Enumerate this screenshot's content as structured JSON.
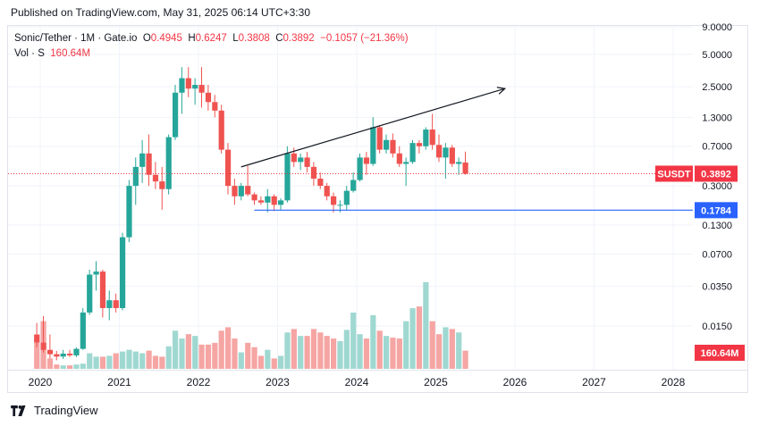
{
  "header": {
    "published": "Published on TradingView.com, May 31, 2025 06:14 UTC+3:30"
  },
  "legend": {
    "symbol": "Sonic/Tether · 1M · Gate.io",
    "open_label": "O",
    "open": "0.4945",
    "high_label": "H",
    "high": "0.6247",
    "low_label": "L",
    "low": "0.3808",
    "close_label": "C",
    "close": "0.3892",
    "change": "−0.1057 (−21.36%)",
    "vol_label": "Vol · S",
    "vol": "160.64M"
  },
  "footer": {
    "brand": "TradingView"
  },
  "colors": {
    "up": "#26a69a",
    "down": "#ef5350",
    "vol_up": "#9fd8d1",
    "vol_down": "#f5a5a3",
    "price_tag": "#f23645",
    "support_line": "#2962ff",
    "trend_line": "#131722",
    "grid": "#f0f3fa"
  },
  "chart_data": {
    "type": "candlestick",
    "y_scale": "log",
    "y_ticks": [
      "9.0000",
      "5.0000",
      "2.5000",
      "1.3000",
      "0.7000",
      "0.3000",
      "0.1300",
      "0.0700",
      "0.0350",
      "0.0150"
    ],
    "y_tick_values": [
      9.0,
      5.0,
      2.5,
      1.3,
      0.7,
      0.3,
      0.13,
      0.07,
      0.035,
      0.015
    ],
    "x_ticks": [
      "2020",
      "2021",
      "2022",
      "2023",
      "2024",
      "2025",
      "2026",
      "2027",
      "2028"
    ],
    "current_price_label": "SUSDT",
    "current_price": "0.3892",
    "support_label": "0.1784",
    "support_value": 0.1784,
    "volume_label": "160.64M",
    "trend_line": {
      "from": {
        "date": "2022-07",
        "price": 0.45
      },
      "to": {
        "date": "2025-11",
        "price": 2.4
      }
    },
    "support_line": {
      "from": {
        "date": "2022-09",
        "price": 0.1784
      }
    },
    "candles": [
      {
        "d": "2019-12",
        "o": 0.0125,
        "h": 0.016,
        "l": 0.0095,
        "c": 0.0105,
        "v": 0.3
      },
      {
        "d": "2020-01",
        "o": 0.0105,
        "h": 0.0185,
        "l": 0.0085,
        "c": 0.009,
        "v": 0.55
      },
      {
        "d": "2020-02",
        "o": 0.009,
        "h": 0.0125,
        "l": 0.0075,
        "c": 0.0082,
        "v": 0.12
      },
      {
        "d": "2020-03",
        "o": 0.0082,
        "h": 0.0088,
        "l": 0.0072,
        "c": 0.0078,
        "v": 0.05
      },
      {
        "d": "2020-04",
        "o": 0.0078,
        "h": 0.009,
        "l": 0.0074,
        "c": 0.0083,
        "v": 0.04
      },
      {
        "d": "2020-05",
        "o": 0.0083,
        "h": 0.009,
        "l": 0.0077,
        "c": 0.008,
        "v": 0.04
      },
      {
        "d": "2020-06",
        "o": 0.008,
        "h": 0.0095,
        "l": 0.0077,
        "c": 0.0092,
        "v": 0.05
      },
      {
        "d": "2020-07",
        "o": 0.0092,
        "h": 0.022,
        "l": 0.009,
        "c": 0.02,
        "v": 0.06
      },
      {
        "d": "2020-08",
        "o": 0.02,
        "h": 0.05,
        "l": 0.019,
        "c": 0.045,
        "v": 0.18
      },
      {
        "d": "2020-09",
        "o": 0.045,
        "h": 0.06,
        "l": 0.032,
        "c": 0.048,
        "v": 0.14
      },
      {
        "d": "2020-10",
        "o": 0.048,
        "h": 0.05,
        "l": 0.018,
        "c": 0.022,
        "v": 0.14
      },
      {
        "d": "2020-11",
        "o": 0.022,
        "h": 0.032,
        "l": 0.017,
        "c": 0.026,
        "v": 0.15
      },
      {
        "d": "2020-12",
        "o": 0.026,
        "h": 0.03,
        "l": 0.02,
        "c": 0.022,
        "v": 0.18
      },
      {
        "d": "2021-01",
        "o": 0.022,
        "h": 0.11,
        "l": 0.021,
        "c": 0.1,
        "v": 0.2
      },
      {
        "d": "2021-02",
        "o": 0.1,
        "h": 0.34,
        "l": 0.09,
        "c": 0.3,
        "v": 0.22
      },
      {
        "d": "2021-03",
        "o": 0.3,
        "h": 0.55,
        "l": 0.2,
        "c": 0.45,
        "v": 0.2
      },
      {
        "d": "2021-04",
        "o": 0.45,
        "h": 0.8,
        "l": 0.32,
        "c": 0.6,
        "v": 0.18
      },
      {
        "d": "2021-05",
        "o": 0.6,
        "h": 0.9,
        "l": 0.3,
        "c": 0.38,
        "v": 0.21
      },
      {
        "d": "2021-06",
        "o": 0.38,
        "h": 0.5,
        "l": 0.28,
        "c": 0.33,
        "v": 0.15
      },
      {
        "d": "2021-07",
        "o": 0.33,
        "h": 0.45,
        "l": 0.18,
        "c": 0.28,
        "v": 0.14
      },
      {
        "d": "2021-08",
        "o": 0.28,
        "h": 0.9,
        "l": 0.25,
        "c": 0.85,
        "v": 0.26
      },
      {
        "d": "2021-09",
        "o": 0.85,
        "h": 2.6,
        "l": 0.8,
        "c": 2.2,
        "v": 0.44
      },
      {
        "d": "2021-10",
        "o": 2.2,
        "h": 3.8,
        "l": 1.4,
        "c": 3.0,
        "v": 0.35
      },
      {
        "d": "2021-11",
        "o": 3.0,
        "h": 3.8,
        "l": 2.0,
        "c": 2.4,
        "v": 0.4
      },
      {
        "d": "2021-12",
        "o": 2.4,
        "h": 3.0,
        "l": 1.7,
        "c": 2.6,
        "v": 0.38
      },
      {
        "d": "2022-01",
        "o": 2.6,
        "h": 3.8,
        "l": 1.6,
        "c": 2.2,
        "v": 0.28
      },
      {
        "d": "2022-02",
        "o": 2.2,
        "h": 2.6,
        "l": 1.5,
        "c": 1.8,
        "v": 0.28
      },
      {
        "d": "2022-03",
        "o": 1.8,
        "h": 2.1,
        "l": 1.3,
        "c": 1.5,
        "v": 0.3
      },
      {
        "d": "2022-04",
        "o": 1.5,
        "h": 1.7,
        "l": 0.6,
        "c": 0.65,
        "v": 0.44
      },
      {
        "d": "2022-05",
        "o": 0.65,
        "h": 0.75,
        "l": 0.25,
        "c": 0.3,
        "v": 0.48
      },
      {
        "d": "2022-06",
        "o": 0.3,
        "h": 0.35,
        "l": 0.2,
        "c": 0.24,
        "v": 0.35
      },
      {
        "d": "2022-07",
        "o": 0.24,
        "h": 0.32,
        "l": 0.22,
        "c": 0.3,
        "v": 0.19
      },
      {
        "d": "2022-08",
        "o": 0.3,
        "h": 0.46,
        "l": 0.24,
        "c": 0.25,
        "v": 0.3
      },
      {
        "d": "2022-09",
        "o": 0.25,
        "h": 0.26,
        "l": 0.2,
        "c": 0.22,
        "v": 0.25
      },
      {
        "d": "2022-10",
        "o": 0.22,
        "h": 0.24,
        "l": 0.2,
        "c": 0.21,
        "v": 0.15
      },
      {
        "d": "2022-11",
        "o": 0.21,
        "h": 0.28,
        "l": 0.17,
        "c": 0.24,
        "v": 0.22
      },
      {
        "d": "2022-12",
        "o": 0.24,
        "h": 0.25,
        "l": 0.175,
        "c": 0.2,
        "v": 0.12
      },
      {
        "d": "2023-01",
        "o": 0.2,
        "h": 0.23,
        "l": 0.18,
        "c": 0.22,
        "v": 0.15
      },
      {
        "d": "2023-02",
        "o": 0.22,
        "h": 0.7,
        "l": 0.21,
        "c": 0.6,
        "v": 0.42
      },
      {
        "d": "2023-03",
        "o": 0.6,
        "h": 0.68,
        "l": 0.45,
        "c": 0.5,
        "v": 0.46
      },
      {
        "d": "2023-04",
        "o": 0.5,
        "h": 0.6,
        "l": 0.42,
        "c": 0.55,
        "v": 0.38
      },
      {
        "d": "2023-05",
        "o": 0.55,
        "h": 0.62,
        "l": 0.4,
        "c": 0.45,
        "v": 0.38
      },
      {
        "d": "2023-06",
        "o": 0.45,
        "h": 0.5,
        "l": 0.3,
        "c": 0.35,
        "v": 0.46
      },
      {
        "d": "2023-07",
        "o": 0.35,
        "h": 0.4,
        "l": 0.28,
        "c": 0.3,
        "v": 0.42
      },
      {
        "d": "2023-08",
        "o": 0.3,
        "h": 0.32,
        "l": 0.22,
        "c": 0.24,
        "v": 0.38
      },
      {
        "d": "2023-09",
        "o": 0.24,
        "h": 0.26,
        "l": 0.17,
        "c": 0.2,
        "v": 0.35
      },
      {
        "d": "2023-10",
        "o": 0.2,
        "h": 0.22,
        "l": 0.17,
        "c": 0.2,
        "v": 0.32
      },
      {
        "d": "2023-11",
        "o": 0.2,
        "h": 0.3,
        "l": 0.18,
        "c": 0.27,
        "v": 0.45
      },
      {
        "d": "2023-12",
        "o": 0.27,
        "h": 0.4,
        "l": 0.26,
        "c": 0.34,
        "v": 0.65
      },
      {
        "d": "2024-01",
        "o": 0.34,
        "h": 0.6,
        "l": 0.33,
        "c": 0.55,
        "v": 0.4
      },
      {
        "d": "2024-02",
        "o": 0.55,
        "h": 0.62,
        "l": 0.38,
        "c": 0.48,
        "v": 0.35
      },
      {
        "d": "2024-03",
        "o": 0.48,
        "h": 1.3,
        "l": 0.46,
        "c": 1.05,
        "v": 0.62
      },
      {
        "d": "2024-04",
        "o": 1.05,
        "h": 1.1,
        "l": 0.6,
        "c": 0.65,
        "v": 0.44
      },
      {
        "d": "2024-05",
        "o": 0.65,
        "h": 0.9,
        "l": 0.6,
        "c": 0.8,
        "v": 0.38
      },
      {
        "d": "2024-06",
        "o": 0.8,
        "h": 0.92,
        "l": 0.55,
        "c": 0.6,
        "v": 0.36
      },
      {
        "d": "2024-07",
        "o": 0.6,
        "h": 0.7,
        "l": 0.45,
        "c": 0.48,
        "v": 0.35
      },
      {
        "d": "2024-08",
        "o": 0.48,
        "h": 0.55,
        "l": 0.3,
        "c": 0.5,
        "v": 0.55
      },
      {
        "d": "2024-09",
        "o": 0.5,
        "h": 0.8,
        "l": 0.48,
        "c": 0.75,
        "v": 0.7
      },
      {
        "d": "2024-10",
        "o": 0.75,
        "h": 0.8,
        "l": 0.6,
        "c": 0.7,
        "v": 0.72
      },
      {
        "d": "2024-11",
        "o": 0.7,
        "h": 1.05,
        "l": 0.65,
        "c": 1.0,
        "v": 1.0
      },
      {
        "d": "2024-12",
        "o": 1.0,
        "h": 1.4,
        "l": 0.65,
        "c": 0.72,
        "v": 0.55
      },
      {
        "d": "2025-01",
        "o": 0.72,
        "h": 0.9,
        "l": 0.5,
        "c": 0.55,
        "v": 0.4
      },
      {
        "d": "2025-02",
        "o": 0.55,
        "h": 0.75,
        "l": 0.35,
        "c": 0.68,
        "v": 0.48
      },
      {
        "d": "2025-03",
        "o": 0.68,
        "h": 0.72,
        "l": 0.45,
        "c": 0.48,
        "v": 0.46
      },
      {
        "d": "2025-04",
        "o": 0.48,
        "h": 0.55,
        "l": 0.38,
        "c": 0.5,
        "v": 0.42
      },
      {
        "d": "2025-05",
        "o": 0.4945,
        "h": 0.6247,
        "l": 0.3808,
        "c": 0.3892,
        "v": 0.21
      }
    ]
  }
}
